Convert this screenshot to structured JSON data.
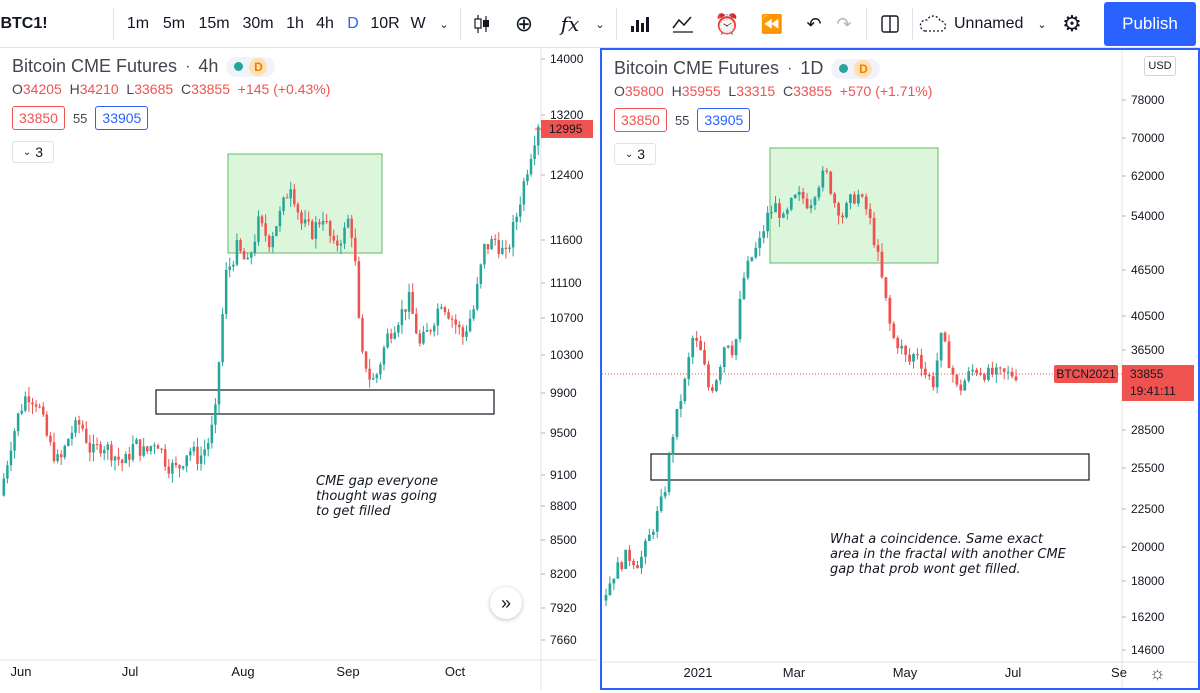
{
  "toolbar": {
    "symbol": "BTC1!",
    "intervals": [
      "1m",
      "5m",
      "15m",
      "30m",
      "1h",
      "4h",
      "D",
      "10R",
      "W"
    ],
    "active_interval": "D",
    "layout_name": "Unnamed",
    "publish_label": "Publish",
    "icons": [
      "chevron-down-icon",
      "candles-icon",
      "add-compare-icon",
      "indicators-icon",
      "chevron-down-icon",
      "templates-icon",
      "chart-type-icon",
      "alert-icon",
      "replay-icon",
      "undo-icon",
      "redo-icon",
      "layout-icon",
      "cloud-icon",
      "gear-icon"
    ]
  },
  "panes": [
    {
      "title": "Bitcoin CME Futures",
      "interval": "4h",
      "badge": "D",
      "ohlc": {
        "o": "34205",
        "h": "34210",
        "l": "33685",
        "c": "33855",
        "change": "+145 (+0.43%)"
      },
      "sell": "33850",
      "spread": "55",
      "buy": "33905",
      "indicators_count": "3",
      "annotation": "CME gap everyone thought was going to get filled",
      "price_label": "12995"
    },
    {
      "title": "Bitcoin CME Futures",
      "interval": "1D",
      "badge": "D",
      "ohlc": {
        "o": "35800",
        "h": "35955",
        "l": "33315",
        "c": "33855",
        "change": "+570 (+1.71%)"
      },
      "sell": "33850",
      "spread": "55",
      "buy": "33905",
      "indicators_count": "3",
      "annotation": "What a coincidence. Same exact area in the fractal with another CME gap that prob wont get filled.",
      "currency": "USD",
      "contract_label": "BTCN2021",
      "price_label": "33855",
      "countdown": "19:41:11"
    }
  ],
  "chart_data": [
    {
      "type": "candlestick",
      "title": "Bitcoin CME Futures",
      "x_tick_labels": [
        "Jun",
        "Jul",
        "Aug",
        "Sep",
        "Oct"
      ],
      "y_tick_labels": [
        "14000",
        "13200",
        "12400",
        "11600",
        "11100",
        "10700",
        "10300",
        "9900",
        "9500",
        "9100",
        "8800",
        "8500",
        "8200",
        "7920",
        "7660"
      ],
      "ylim": [
        7500,
        14100
      ],
      "scale": "log",
      "last_price": 12995,
      "path": [
        [
          0,
          8900
        ],
        [
          0.02,
          9400
        ],
        [
          0.035,
          9700
        ],
        [
          0.05,
          9900
        ],
        [
          0.07,
          9800
        ],
        [
          0.09,
          9400
        ],
        [
          0.11,
          9200
        ],
        [
          0.13,
          9500
        ],
        [
          0.15,
          9600
        ],
        [
          0.17,
          9300
        ],
        [
          0.19,
          9400
        ],
        [
          0.21,
          9300
        ],
        [
          0.23,
          9200
        ],
        [
          0.25,
          9400
        ],
        [
          0.27,
          9300
        ],
        [
          0.29,
          9450
        ],
        [
          0.31,
          9200
        ],
        [
          0.33,
          9150
        ],
        [
          0.35,
          9350
        ],
        [
          0.37,
          9250
        ],
        [
          0.39,
          9450
        ],
        [
          0.4,
          9700
        ],
        [
          0.41,
          10500
        ],
        [
          0.42,
          11200
        ],
        [
          0.44,
          11500
        ],
        [
          0.46,
          11300
        ],
        [
          0.48,
          11800
        ],
        [
          0.5,
          11600
        ],
        [
          0.52,
          11900
        ],
        [
          0.54,
          12300
        ],
        [
          0.56,
          11800
        ],
        [
          0.58,
          11700
        ],
        [
          0.6,
          11900
        ],
        [
          0.62,
          11500
        ],
        [
          0.64,
          11700
        ],
        [
          0.65,
          11900
        ],
        [
          0.66,
          11300
        ],
        [
          0.67,
          10300
        ],
        [
          0.68,
          10200
        ],
        [
          0.69,
          10000
        ],
        [
          0.7,
          10100
        ],
        [
          0.72,
          10500
        ],
        [
          0.74,
          10700
        ],
        [
          0.76,
          10900
        ],
        [
          0.78,
          10400
        ],
        [
          0.8,
          10600
        ],
        [
          0.82,
          10900
        ],
        [
          0.84,
          10700
        ],
        [
          0.86,
          10500
        ],
        [
          0.88,
          10800
        ],
        [
          0.9,
          11500
        ],
        [
          0.92,
          11600
        ],
        [
          0.94,
          11400
        ],
        [
          0.96,
          11900
        ],
        [
          0.98,
          12500
        ],
        [
          1,
          13100
        ]
      ],
      "annotations": [
        {
          "kind": "rectangle",
          "fill": "green",
          "y_range": [
            11480,
            12700
          ]
        },
        {
          "kind": "rectangle",
          "fill": "none",
          "y_range": [
            9630,
            9950
          ]
        }
      ],
      "annotation_text": "CME gap everyone thought was going to get filled"
    },
    {
      "type": "candlestick",
      "title": "Bitcoin CME Futures",
      "x_tick_labels": [
        "2021",
        "Mar",
        "May",
        "Jul",
        "Se"
      ],
      "y_tick_labels": [
        "78000",
        "70000",
        "62000",
        "54000",
        "46500",
        "40500",
        "36500",
        "28500",
        "25500",
        "22500",
        "20000",
        "18000",
        "16200",
        "14600"
      ],
      "ylim": [
        14000,
        90000
      ],
      "scale": "log",
      "last_price": 33855,
      "path": [
        [
          0,
          17000
        ],
        [
          0.03,
          18500
        ],
        [
          0.06,
          19500
        ],
        [
          0.09,
          19000
        ],
        [
          0.12,
          21000
        ],
        [
          0.15,
          23500
        ],
        [
          0.17,
          28000
        ],
        [
          0.2,
          33000
        ],
        [
          0.22,
          38000
        ],
        [
          0.24,
          36000
        ],
        [
          0.26,
          32000
        ],
        [
          0.28,
          34000
        ],
        [
          0.3,
          38000
        ],
        [
          0.32,
          36000
        ],
        [
          0.34,
          45000
        ],
        [
          0.36,
          48000
        ],
        [
          0.38,
          50000
        ],
        [
          0.4,
          54000
        ],
        [
          0.42,
          56000
        ],
        [
          0.44,
          53000
        ],
        [
          0.46,
          57000
        ],
        [
          0.48,
          58000
        ],
        [
          0.5,
          56000
        ],
        [
          0.52,
          60000
        ],
        [
          0.54,
          63000
        ],
        [
          0.56,
          57000
        ],
        [
          0.58,
          54000
        ],
        [
          0.6,
          57000
        ],
        [
          0.62,
          58000
        ],
        [
          0.64,
          55000
        ],
        [
          0.66,
          50000
        ],
        [
          0.68,
          44000
        ],
        [
          0.7,
          38000
        ],
        [
          0.72,
          37000
        ],
        [
          0.74,
          35000
        ],
        [
          0.76,
          36500
        ],
        [
          0.78,
          34000
        ],
        [
          0.8,
          33000
        ],
        [
          0.82,
          38000
        ],
        [
          0.84,
          35000
        ],
        [
          0.86,
          32000
        ],
        [
          0.88,
          33500
        ],
        [
          0.9,
          34500
        ],
        [
          0.93,
          33855
        ]
      ],
      "annotations": [
        {
          "kind": "rectangle",
          "fill": "green",
          "y_range": [
            47500,
            67000
          ]
        },
        {
          "kind": "rectangle",
          "fill": "none",
          "y_range": [
            24500,
            26800
          ]
        }
      ],
      "annotation_text": "What a coincidence. Same exact area in the fractal with another CME gap that prob wont get filled."
    }
  ],
  "colors": {
    "up": "#26a69a",
    "down": "#ef5350",
    "accent": "#2962ff",
    "zone_fill": "#d6f5d6",
    "zone_stroke": "#4caf50",
    "price_line": "#ef5350"
  }
}
